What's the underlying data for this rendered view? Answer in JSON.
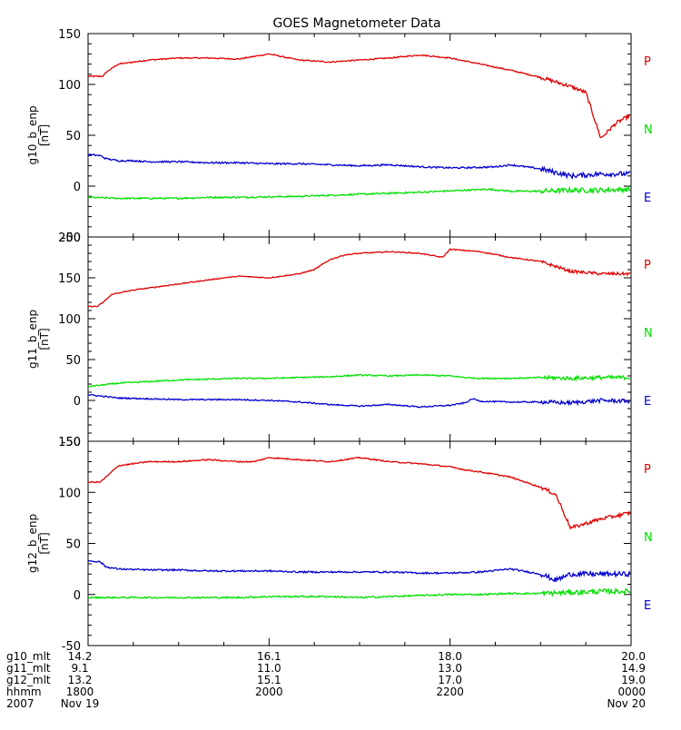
{
  "chart_data": {
    "type": "line",
    "title": "GOES Magnetometer Data",
    "colors": {
      "P": "#e00000",
      "N": "#00e000",
      "E": "#0000d0",
      "axis": "#000000"
    },
    "x_range_minutes": [
      0,
      360
    ],
    "panels": [
      {
        "ylabel": "g10_b_enp",
        "units": "[nT]",
        "ylim": [
          -50,
          150
        ],
        "yticks": [
          -50,
          0,
          50,
          100,
          150
        ],
        "series": [
          {
            "name": "P",
            "x": [
              0,
              10,
              12,
              20,
              40,
              60,
              80,
              100,
              120,
              133,
              140,
              160,
              180,
              200,
              220,
              240,
              250,
              260,
              280,
              300,
              320,
              330,
              340,
              350,
              360
            ],
            "values": [
              108,
              108,
              112,
              120,
              124,
              126,
              126,
              125,
              130,
              126,
              124,
              122,
              124,
              126,
              129,
              126,
              123,
              120,
              114,
              107,
              98,
              92,
              47,
              62,
              70
            ]
          },
          {
            "name": "N",
            "x": [
              0,
              20,
              40,
              60,
              80,
              100,
              140,
              180,
              220,
              250,
              265,
              280,
              300,
              320,
              340,
              360
            ],
            "values": [
              -11,
              -12,
              -12,
              -12,
              -11,
              -11,
              -10,
              -8,
              -6,
              -4,
              -3,
              -5,
              -5,
              -4,
              -4,
              -3
            ]
          },
          {
            "name": "E",
            "x": [
              0,
              8,
              12,
              20,
              30,
              40,
              60,
              80,
              100,
              120,
              140,
              160,
              180,
              200,
              220,
              240,
              250,
              270,
              280,
              300,
              320,
              340,
              360
            ],
            "values": [
              31,
              30,
              27,
              25,
              25,
              24,
              24,
              23,
              23,
              22,
              22,
              21,
              20,
              21,
              19,
              18,
              18,
              19,
              21,
              17,
              10,
              12,
              12
            ]
          }
        ],
        "legend": [
          "P",
          "N",
          "E"
        ]
      },
      {
        "ylabel": "g11_b_enp",
        "units": "[nT]",
        "ylim": [
          -50,
          200
        ],
        "yticks": [
          -50,
          0,
          50,
          100,
          150,
          200
        ],
        "series": [
          {
            "name": "P",
            "x": [
              0,
              6,
              10,
              16,
              30,
              50,
              70,
              90,
              100,
              120,
              140,
              150,
              160,
              170,
              180,
              200,
              220,
              235,
              240,
              260,
              280,
              300,
              320,
              340,
              360
            ],
            "values": [
              115,
              115,
              120,
              130,
              135,
              140,
              145,
              150,
              152,
              150,
              155,
              160,
              172,
              178,
              180,
              182,
              180,
              175,
              185,
              182,
              175,
              170,
              158,
              155,
              155
            ]
          },
          {
            "name": "N",
            "x": [
              0,
              20,
              40,
              60,
              80,
              100,
              120,
              140,
              160,
              180,
              200,
              220,
              240,
              250,
              260,
              280,
              300,
              320,
              340,
              360
            ],
            "values": [
              17,
              21,
              23,
              25,
              26,
              27,
              27,
              28,
              29,
              31,
              30,
              31,
              30,
              28,
              27,
              27,
              28,
              27,
              28,
              28
            ]
          },
          {
            "name": "E",
            "x": [
              0,
              10,
              20,
              40,
              60,
              80,
              100,
              120,
              140,
              160,
              180,
              200,
              220,
              240,
              250,
              255,
              260,
              280,
              300,
              320,
              340,
              360
            ],
            "values": [
              7,
              5,
              3,
              2,
              1,
              1,
              1,
              0,
              -2,
              -5,
              -7,
              -5,
              -8,
              -6,
              -3,
              2,
              -1,
              -2,
              -2,
              -3,
              0,
              -1
            ]
          }
        ],
        "legend": [
          "P",
          "N",
          "E"
        ]
      },
      {
        "ylabel": "g12_b_enp",
        "units": "[nT]",
        "ylim": [
          -50,
          150
        ],
        "yticks": [
          -50,
          0,
          50,
          100,
          150
        ],
        "series": [
          {
            "name": "P",
            "x": [
              0,
              8,
              12,
              20,
              30,
              40,
              60,
              80,
              100,
              110,
              120,
              140,
              160,
              180,
              200,
              220,
              240,
              250,
              260,
              280,
              300,
              310,
              320,
              340,
              360
            ],
            "values": [
              110,
              110,
              115,
              126,
              128,
              130,
              130,
              132,
              130,
              130,
              134,
              132,
              130,
              134,
              130,
              128,
              125,
              122,
              120,
              115,
              105,
              98,
              65,
              74,
              80
            ]
          },
          {
            "name": "N",
            "x": [
              0,
              20,
              40,
              60,
              80,
              100,
              120,
              140,
              160,
              180,
              200,
              220,
              240,
              260,
              280,
              300,
              320,
              340,
              360
            ],
            "values": [
              -3,
              -3,
              -3,
              -3,
              -3,
              -3,
              -2,
              -2,
              -2,
              -3,
              -2,
              -1,
              0,
              0,
              1,
              1,
              2,
              3,
              3
            ]
          },
          {
            "name": "E",
            "x": [
              0,
              8,
              12,
              20,
              40,
              60,
              80,
              100,
              120,
              140,
              160,
              180,
              200,
              220,
              240,
              260,
              280,
              300,
              310,
              320,
              340,
              360
            ],
            "values": [
              33,
              32,
              27,
              25,
              24,
              24,
              23,
              23,
              23,
              22,
              22,
              22,
              22,
              21,
              21,
              22,
              25,
              20,
              14,
              20,
              20,
              20
            ]
          }
        ],
        "legend": [
          "P",
          "N",
          "E"
        ]
      }
    ],
    "footer_rows": [
      {
        "label": "g10_mlt",
        "values": [
          "14.2",
          "16.1",
          "18.0",
          "20.0"
        ]
      },
      {
        "label": "g11_mlt",
        "values": [
          "9.1",
          "11.0",
          "13.0",
          "14.9"
        ]
      },
      {
        "label": "g12_mlt",
        "values": [
          "13.2",
          "15.1",
          "17.0",
          "19.0"
        ]
      },
      {
        "label": "hhmm",
        "values": [
          "1800",
          "2000",
          "2200",
          "0000"
        ]
      },
      {
        "label": "2007",
        "values": [
          "Nov 19",
          "",
          "",
          "Nov 20"
        ]
      }
    ],
    "x_tick_minutes": [
      0,
      120,
      240,
      360
    ],
    "minor_tick_minutes": [
      30,
      60,
      90,
      150,
      180,
      210,
      270,
      300,
      330
    ]
  }
}
